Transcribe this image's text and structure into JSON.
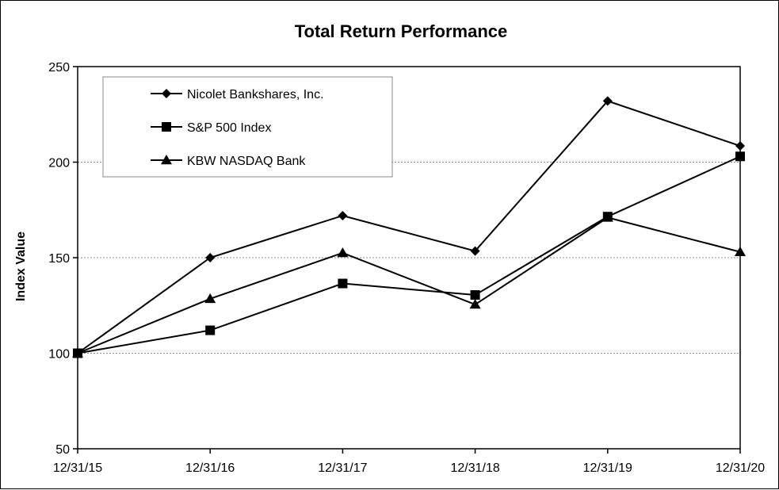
{
  "chart_data": {
    "type": "line",
    "title": "Total Return Performance",
    "xlabel": "",
    "ylabel": "Index Value",
    "categories": [
      "12/31/15",
      "12/31/16",
      "12/31/17",
      "12/31/18",
      "12/31/19",
      "12/31/20"
    ],
    "ylim": [
      50,
      250
    ],
    "yticks": [
      "50",
      "100",
      "150",
      "200",
      "250"
    ],
    "grid": "horizontal dotted at 100, 150, 200",
    "legend_position": "top-left",
    "series": [
      {
        "name": "Nicolet Bankshares, Inc.",
        "marker": "diamond",
        "values": [
          100,
          150,
          172,
          153.5,
          232,
          208.5
        ]
      },
      {
        "name": "S&P 500 Index",
        "marker": "square",
        "values": [
          100,
          112,
          136.5,
          130.5,
          171.5,
          203
        ]
      },
      {
        "name": "KBW NASDAQ Bank",
        "marker": "triangle",
        "values": [
          100,
          128.5,
          152.5,
          125.5,
          171,
          153
        ]
      }
    ],
    "line_color": "#000000"
  }
}
